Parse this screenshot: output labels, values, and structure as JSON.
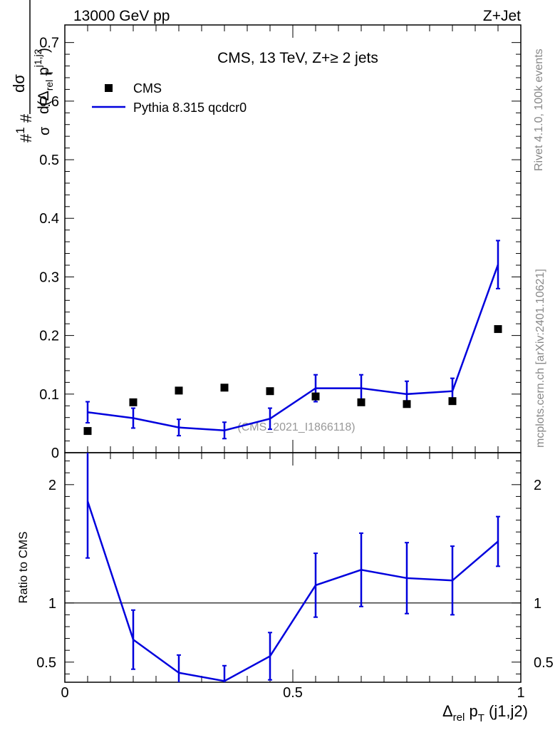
{
  "header": {
    "left": "13000 GeV pp",
    "right": "Z+Jet"
  },
  "side_labels": {
    "rivet": "Rivet 4.1.0,  100k events",
    "mcplots": "mcplots.cern.ch [arXiv:2401.10621]"
  },
  "chart_data": [
    {
      "type": "scatter+line",
      "title": "CMS, 13 TeV, Z+≥ 2 jets",
      "watermark": "(CMS_2021_I1866118)",
      "ylabel_parts": {
        "hash1": "#",
        "one": "1",
        "sigma": "σ",
        "hash2": "#",
        "dsigma": "dσ",
        "denom": "d(Δ",
        "rel": "rel",
        "p": " p",
        "T": "T",
        "sup": "j1,j2",
        "close": ")"
      },
      "xlim": [
        0,
        1
      ],
      "ylim": [
        0,
        0.73
      ],
      "yticks": [
        0,
        0.1,
        0.2,
        0.3,
        0.4,
        0.5,
        0.6,
        0.7
      ],
      "ytick_labels": [
        "0",
        "0.1",
        "0.2",
        "0.3",
        "0.4",
        "0.5",
        "0.6",
        "0.7"
      ],
      "legend": {
        "position": "top-left",
        "entries": [
          {
            "name": "CMS",
            "style": "marker"
          },
          {
            "name": "Pythia 8.315 qcdcr0",
            "style": "line"
          }
        ]
      },
      "series": [
        {
          "name": "CMS",
          "color": "#000000",
          "x": [
            0.05,
            0.15,
            0.25,
            0.35,
            0.45,
            0.55,
            0.65,
            0.75,
            0.85,
            0.95
          ],
          "y": [
            0.037,
            0.086,
            0.106,
            0.111,
            0.105,
            0.096,
            0.086,
            0.083,
            0.088,
            0.211
          ]
        },
        {
          "name": "Pythia 8.315 qcdcr0",
          "color": "#0000dd",
          "x": [
            0.05,
            0.15,
            0.25,
            0.35,
            0.45,
            0.55,
            0.65,
            0.75,
            0.85,
            0.95
          ],
          "y": [
            0.069,
            0.059,
            0.043,
            0.038,
            0.058,
            0.11,
            0.11,
            0.1,
            0.105,
            0.321
          ],
          "err": [
            0.018,
            0.017,
            0.014,
            0.014,
            0.018,
            0.023,
            0.023,
            0.022,
            0.022,
            0.041
          ]
        }
      ]
    },
    {
      "type": "line",
      "ylabel": "Ratio to CMS",
      "xlabel_parts": {
        "delta": "Δ",
        "rel": "rel",
        "p": " p",
        "T": "T",
        "rest": " (j1,j2)"
      },
      "xlim": [
        0,
        1
      ],
      "ylim": [
        0.33,
        2.27
      ],
      "reference": 1,
      "xticks": [
        0,
        0.5,
        1
      ],
      "xtick_labels": [
        "0",
        "0.5",
        "1"
      ],
      "yticks": [
        0.5,
        1,
        2
      ],
      "ytick_labels": [
        "0.5",
        "1",
        "2"
      ],
      "series": [
        {
          "name": "Pythia 8.315 qcdcr0 / CMS",
          "color": "#0000dd",
          "x": [
            0.05,
            0.15,
            0.25,
            0.35,
            0.45,
            0.55,
            0.65,
            0.75,
            0.85,
            0.95
          ],
          "y": [
            1.86,
            0.69,
            0.41,
            0.34,
            0.55,
            1.15,
            1.28,
            1.21,
            1.19,
            1.52
          ],
          "err": [
            0.48,
            0.25,
            0.15,
            0.13,
            0.2,
            0.27,
            0.31,
            0.3,
            0.29,
            0.21
          ]
        }
      ]
    }
  ]
}
